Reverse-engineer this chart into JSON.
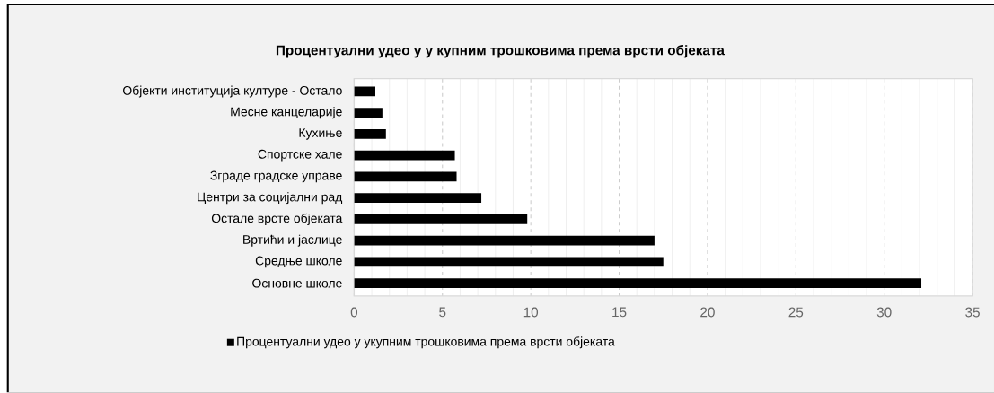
{
  "chart_data": {
    "type": "bar",
    "orientation": "horizontal",
    "title": "Процентуални удео у у купним трошковима према врсти објеката",
    "categories": [
      "Објекти институција културе - Остало",
      "Месне канцеларије",
      "Кухиње",
      "Спортске хале",
      "Зграде градске управе",
      "Центри за социјални рад",
      "Остале врсте објеката",
      "Вртићи и јаслице",
      "Средње школе",
      "Основне школе"
    ],
    "series": [
      {
        "name": "Процентуални удео у укупним трошковима према врсти објеката",
        "color": "#000000",
        "values": [
          1.2,
          1.6,
          1.8,
          5.7,
          5.8,
          7.2,
          9.8,
          17.0,
          17.5,
          32.1
        ]
      }
    ],
    "xlim": [
      0,
      35
    ],
    "xticks": [
      0,
      5,
      10,
      15,
      20,
      25,
      30,
      35
    ],
    "grid": "x",
    "legend": "bottom"
  }
}
